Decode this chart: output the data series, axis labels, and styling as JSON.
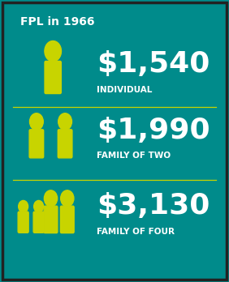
{
  "title": "FPL in 1966",
  "background_color": "#008B8B",
  "accent_color": "#c8d400",
  "divider_color": "#c8d400",
  "text_color_white": "#ffffff",
  "border_color": "#222222",
  "rows": [
    {
      "amount": "$1,540",
      "label": "INDIVIDUAL",
      "icon_count": 1
    },
    {
      "amount": "$1,990",
      "label": "FAMILY OF TWO",
      "icon_count": 2
    },
    {
      "amount": "$3,130",
      "label": "FAMILY OF FOUR",
      "icon_count": 4
    }
  ],
  "title_fontsize": 10,
  "amount_fontsize": 26,
  "label_fontsize": 7.5,
  "figsize": [
    2.82,
    3.48
  ],
  "dpi": 100
}
